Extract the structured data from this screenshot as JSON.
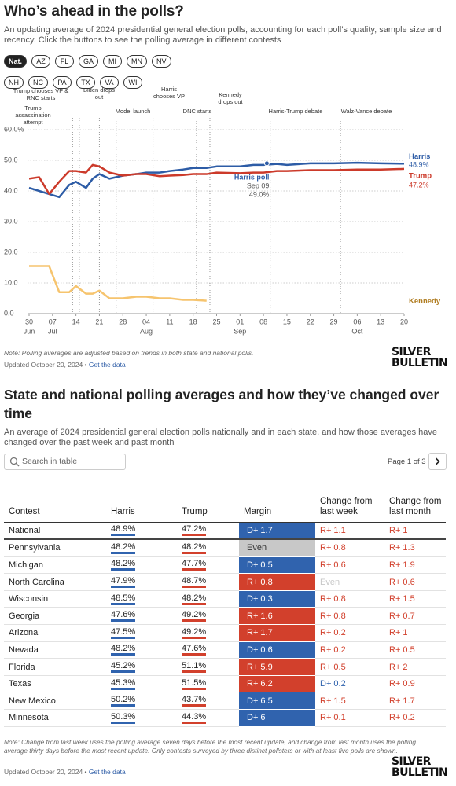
{
  "header": {
    "title": "Who’s ahead in the polls?",
    "subtitle": "An updating average of 2024 presidential general election polls, accounting for each poll’s quality, sample size and recency. Click the buttons to see the polling average in different contests"
  },
  "contests": [
    "Nat.",
    "AZ",
    "FL",
    "GA",
    "MI",
    "MN",
    "NV",
    "NH",
    "NC",
    "PA",
    "TX",
    "VA",
    "WI"
  ],
  "selected_contest": 0,
  "chart_data": {
    "type": "line",
    "x": [
      0,
      3,
      6,
      9,
      12,
      14,
      17,
      19,
      21,
      24,
      28,
      32,
      35,
      39,
      42,
      46,
      49,
      53,
      56,
      63,
      67,
      70,
      74,
      77,
      84,
      91,
      98,
      105,
      112
    ],
    "series": [
      {
        "name": "Harris",
        "color": "#2d5ca6",
        "label_color": "#2d5ca6",
        "end_label": "48.9%",
        "values": [
          41,
          40,
          39,
          38,
          42,
          43,
          41,
          44,
          45.5,
          44,
          45,
          45.5,
          46,
          46,
          46.5,
          47,
          47.5,
          47.5,
          48,
          48,
          48.5,
          48.5,
          48.8,
          48.5,
          49,
          49,
          49.2,
          49,
          48.9
        ]
      },
      {
        "name": "Trump",
        "color": "#cc3a2a",
        "label_color": "#cc3a2a",
        "end_label": "47.2%",
        "values": [
          44,
          44.5,
          39,
          43,
          46.5,
          46.5,
          46,
          48.5,
          48,
          46,
          45,
          45.5,
          45.5,
          44.8,
          45,
          45.2,
          45.5,
          45.5,
          46,
          45.8,
          46,
          46,
          46.5,
          46.5,
          46.8,
          46.8,
          47,
          47,
          47.2
        ]
      },
      {
        "name": "Kennedy",
        "color": "#f6c46e",
        "label_color": "#b07d22",
        "values": [
          15.5,
          15.5,
          15.5,
          7,
          7,
          9,
          6.5,
          6.5,
          7.5,
          5,
          5,
          5.5,
          5.5,
          5,
          5,
          4.5,
          4.5,
          4.2,
          null,
          null,
          null,
          null,
          null,
          null,
          null,
          null,
          null,
          null,
          null
        ]
      }
    ],
    "xlim": [
      0,
      112
    ],
    "xticks": [
      {
        "value": 0,
        "label": "30"
      },
      {
        "value": 7,
        "label": "07"
      },
      {
        "value": 14,
        "label": "14"
      },
      {
        "value": 21,
        "label": "21"
      },
      {
        "value": 28,
        "label": "28"
      },
      {
        "value": 35,
        "label": "04"
      },
      {
        "value": 42,
        "label": "11"
      },
      {
        "value": 49,
        "label": "18"
      },
      {
        "value": 56,
        "label": "25"
      },
      {
        "value": 63,
        "label": "01"
      },
      {
        "value": 70,
        "label": "08"
      },
      {
        "value": 77,
        "label": "15"
      },
      {
        "value": 84,
        "label": "22"
      },
      {
        "value": 91,
        "label": "29"
      },
      {
        "value": 98,
        "label": "06"
      },
      {
        "value": 105,
        "label": "13"
      },
      {
        "value": 112,
        "label": "20"
      }
    ],
    "x_month_labels": [
      {
        "value": 0,
        "label": "Jun"
      },
      {
        "value": 7,
        "label": "Jul"
      },
      {
        "value": 35,
        "label": "Aug"
      },
      {
        "value": 63,
        "label": "Sep"
      },
      {
        "value": 98,
        "label": "Oct"
      }
    ],
    "ylim": [
      0,
      60
    ],
    "yticks": [
      {
        "value": 0,
        "label": "0.0"
      },
      {
        "value": 10,
        "label": "10.0"
      },
      {
        "value": 20,
        "label": "20.0"
      },
      {
        "value": 30,
        "label": "30.0"
      },
      {
        "value": 40,
        "label": "40.0"
      },
      {
        "value": 50,
        "label": "50.0"
      },
      {
        "value": 60,
        "label": "60.0%"
      }
    ],
    "grid": true,
    "annotations": [
      {
        "x": 13,
        "label": "Trump assassination attempt"
      },
      {
        "x": 15,
        "label": "Trump chooses VP & RNC starts"
      },
      {
        "x": 21,
        "label": "Biden drops out"
      },
      {
        "x": 26,
        "label": "Model launch"
      },
      {
        "x": 37,
        "label": "Harris chooses VP"
      },
      {
        "x": 50,
        "label": "DNC starts"
      },
      {
        "x": 54,
        "label": "Kennedy drops out"
      },
      {
        "x": 72,
        "label": "Harris-Trump debate"
      },
      {
        "x": 93,
        "label": "Walz-Vance debate"
      }
    ],
    "tooltip": {
      "name": "Harris poll",
      "date": "Sep 09",
      "x": 71,
      "value": 49.0,
      "value_label": "49.0%"
    }
  },
  "chart_footer": {
    "note": "Note: Polling averages are adjusted based on trends in both state and national polls.",
    "updated": "Updated October 20, 2024",
    "link": "Get the data"
  },
  "logo": [
    "SILVER",
    "BULLETIN"
  ],
  "table": {
    "title": "State and national polling averages and how they’ve changed over time",
    "subtitle": "An average of 2024 presidential general election polls nationally and in each state, and how those averages have changed over the past week and past month",
    "search_placeholder": "Search in table",
    "pagination": "Page 1 of 3",
    "colors": {
      "D": "#3063ae",
      "R": "#d2402c",
      "Even": "#c8c8c8"
    },
    "columns": [
      "Contest",
      "Harris",
      "Trump",
      "Margin",
      "Change from last week",
      "Change from last month"
    ],
    "rows": [
      [
        "National",
        "48.9%",
        "47.2%",
        "D+ 1.7",
        "R+ 1.1",
        "R+ 1"
      ],
      [
        "Pennsylvania",
        "48.2%",
        "48.2%",
        "Even",
        "R+ 0.8",
        "R+ 1.3"
      ],
      [
        "Michigan",
        "48.2%",
        "47.7%",
        "D+ 0.5",
        "R+ 0.6",
        "R+ 1.9"
      ],
      [
        "North Carolina",
        "47.9%",
        "48.7%",
        "R+ 0.8",
        "Even",
        "R+ 0.6"
      ],
      [
        "Wisconsin",
        "48.5%",
        "48.2%",
        "D+ 0.3",
        "R+ 0.8",
        "R+ 1.5"
      ],
      [
        "Georgia",
        "47.6%",
        "49.2%",
        "R+ 1.6",
        "R+ 0.8",
        "R+ 0.7"
      ],
      [
        "Arizona",
        "47.5%",
        "49.2%",
        "R+ 1.7",
        "R+ 0.2",
        "R+ 1"
      ],
      [
        "Nevada",
        "48.2%",
        "47.6%",
        "D+ 0.6",
        "R+ 0.2",
        "R+ 0.5"
      ],
      [
        "Florida",
        "45.2%",
        "51.1%",
        "R+ 5.9",
        "R+ 0.5",
        "R+ 2"
      ],
      [
        "Texas",
        "45.3%",
        "51.5%",
        "R+ 6.2",
        "D+ 0.2",
        "R+ 0.9"
      ],
      [
        "New Mexico",
        "50.2%",
        "43.7%",
        "D+ 6.5",
        "R+ 1.5",
        "R+ 1.7"
      ],
      [
        "Minnesota",
        "50.3%",
        "44.3%",
        "D+ 6",
        "R+ 0.1",
        "R+ 0.2"
      ]
    ]
  },
  "table_footer": {
    "note": "Note: Change from last week uses the polling average seven days before the most recent update, and change from last month uses the polling average thirty days before the most recent update. Only contests surveyed by three distinct pollsters or with at least five polls are shown.",
    "updated": "Updated October 20, 2024",
    "link": "Get the data"
  }
}
